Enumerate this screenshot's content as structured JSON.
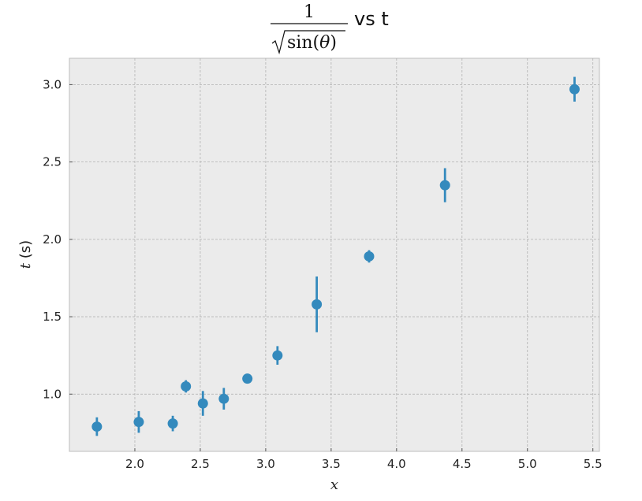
{
  "chart_data": {
    "type": "scatter",
    "title": {
      "numerator": "1",
      "den_fn": "sin(",
      "den_var": "θ",
      "den_close": ")",
      "suffix": "vs t"
    },
    "xlabel": "x",
    "ylabel": {
      "var": "t",
      "unit": " (s)"
    },
    "xlim": [
      1.5,
      5.55
    ],
    "ylim": [
      0.63,
      3.17
    ],
    "xticks": [
      2.0,
      2.5,
      3.0,
      3.5,
      4.0,
      4.5,
      5.0,
      5.5
    ],
    "xtick_labels": [
      "2.0",
      "2.5",
      "3.0",
      "3.5",
      "4.0",
      "4.5",
      "5.0",
      "5.5"
    ],
    "yticks": [
      1.0,
      1.5,
      2.0,
      2.5,
      3.0
    ],
    "ytick_labels": [
      "1.0",
      "1.5",
      "2.0",
      "2.5",
      "3.0"
    ],
    "grid": true,
    "background": "#ebebeb",
    "marker_color": "#348abd",
    "series": [
      {
        "x": [
          1.71,
          2.03,
          2.29,
          2.39,
          2.52,
          2.68,
          2.86,
          3.09,
          3.39,
          3.79,
          4.37,
          5.36
        ],
        "y": [
          0.79,
          0.82,
          0.81,
          1.05,
          0.94,
          0.97,
          1.1,
          1.25,
          1.58,
          1.89,
          2.35,
          2.97
        ],
        "err": [
          0.06,
          0.07,
          0.05,
          0.04,
          0.08,
          0.07,
          0.03,
          0.06,
          0.18,
          0.04,
          0.11,
          0.08
        ]
      }
    ]
  }
}
